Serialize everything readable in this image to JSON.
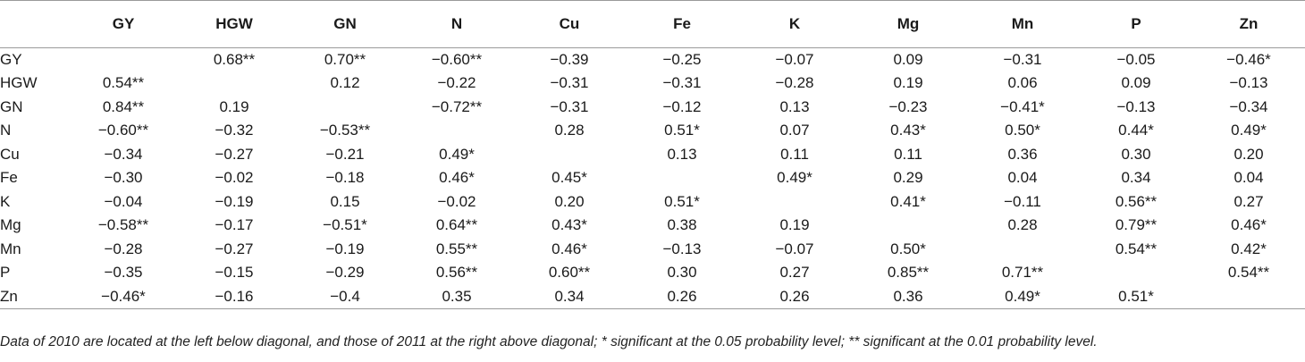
{
  "table": {
    "columns": [
      "",
      "GY",
      "HGW",
      "GN",
      "N",
      "Cu",
      "Fe",
      "K",
      "Mg",
      "Mn",
      "P",
      "Zn"
    ],
    "rows": [
      [
        "GY",
        "",
        "0.68**",
        "0.70**",
        "−0.60**",
        "−0.39",
        "−0.25",
        "−0.07",
        "0.09",
        "−0.31",
        "−0.05",
        "−0.46*"
      ],
      [
        "HGW",
        "0.54**",
        "",
        "0.12",
        "−0.22",
        "−0.31",
        "−0.31",
        "−0.28",
        "0.19",
        "0.06",
        "0.09",
        "−0.13"
      ],
      [
        "GN",
        "0.84**",
        "0.19",
        "",
        "−0.72**",
        "−0.31",
        "−0.12",
        "0.13",
        "−0.23",
        "−0.41*",
        "−0.13",
        "−0.34"
      ],
      [
        "N",
        "−0.60**",
        "−0.32",
        "−0.53**",
        "",
        "0.28",
        "0.51*",
        "0.07",
        "0.43*",
        "0.50*",
        "0.44*",
        "0.49*"
      ],
      [
        "Cu",
        "−0.34",
        "−0.27",
        "−0.21",
        "0.49*",
        "",
        "0.13",
        "0.11",
        "0.11",
        "0.36",
        "0.30",
        "0.20"
      ],
      [
        "Fe",
        "−0.30",
        "−0.02",
        "−0.18",
        "0.46*",
        "0.45*",
        "",
        "0.49*",
        "0.29",
        "0.04",
        "0.34",
        "0.04"
      ],
      [
        "K",
        "−0.04",
        "−0.19",
        "0.15",
        "−0.02",
        "0.20",
        "0.51*",
        "",
        "0.41*",
        "−0.11",
        "0.56**",
        "0.27"
      ],
      [
        "Mg",
        "−0.58**",
        "−0.17",
        "−0.51*",
        "0.64**",
        "0.43*",
        "0.38",
        "0.19",
        "",
        "0.28",
        "0.79**",
        "0.46*"
      ],
      [
        "Mn",
        "−0.28",
        "−0.27",
        "−0.19",
        "0.55**",
        "0.46*",
        "−0.13",
        "−0.07",
        "0.50*",
        "",
        "0.54**",
        "0.42*"
      ],
      [
        "P",
        "−0.35",
        "−0.15",
        "−0.29",
        "0.56**",
        "0.60**",
        "0.30",
        "0.27",
        "0.85**",
        "0.71**",
        "",
        "0.54**"
      ],
      [
        "Zn",
        "−0.46*",
        "−0.16",
        "−0.4",
        "0.35",
        "0.34",
        "0.26",
        "0.26",
        "0.36",
        "0.49*",
        "0.51*",
        ""
      ]
    ]
  },
  "footnote": "Data of 2010 are located at the left below diagonal, and those of 2011 at the right above diagonal; * significant at the 0.05 probability level; ** significant at the 0.01 probability level."
}
